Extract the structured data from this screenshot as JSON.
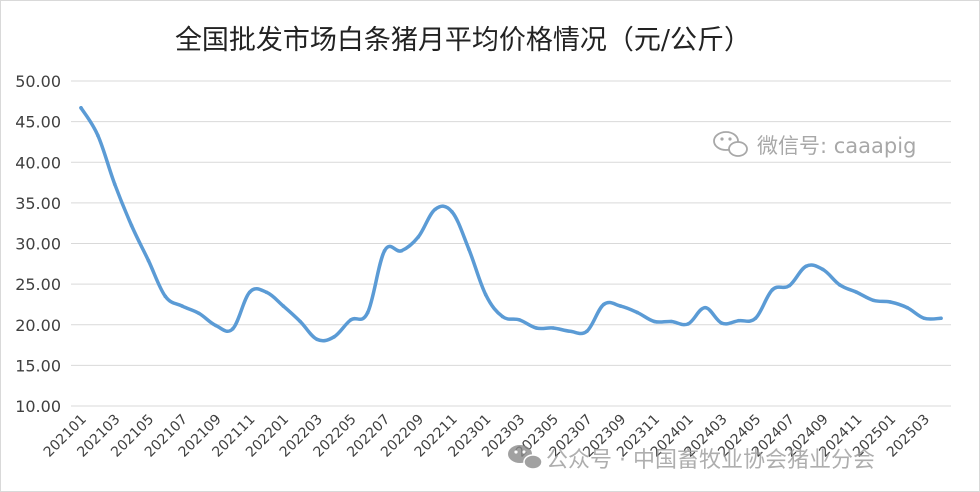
{
  "chart_data": {
    "type": "line",
    "title": "全国批发市场白条猪月平均价格情况（元/公斤）",
    "xlabel": "",
    "ylabel": "",
    "ylim": [
      10,
      50
    ],
    "y_ticks": [
      "10.00",
      "15.00",
      "20.00",
      "25.00",
      "30.00",
      "35.00",
      "40.00",
      "45.00",
      "50.00"
    ],
    "y_tick_values": [
      10,
      15,
      20,
      25,
      30,
      35,
      40,
      45,
      50
    ],
    "grid": true,
    "legend": "none",
    "line_color": "#5b9bd5",
    "x": [
      "202101",
      "202102",
      "202103",
      "202104",
      "202105",
      "202106",
      "202107",
      "202108",
      "202109",
      "202110",
      "202111",
      "202112",
      "202201",
      "202202",
      "202203",
      "202204",
      "202205",
      "202206",
      "202207",
      "202208",
      "202209",
      "202210",
      "202211",
      "202212",
      "202301",
      "202302",
      "202303",
      "202304",
      "202305",
      "202306",
      "202307",
      "202308",
      "202309",
      "202310",
      "202311",
      "202312",
      "202401",
      "202402",
      "202403",
      "202404",
      "202405",
      "202406",
      "202407",
      "202408",
      "202409",
      "202410",
      "202411",
      "202412",
      "202501",
      "202502",
      "202503",
      "202504"
    ],
    "x_tick_labels": [
      "202101",
      "202103",
      "202105",
      "202107",
      "202109",
      "202111",
      "202201",
      "202203",
      "202205",
      "202207",
      "202209",
      "202211",
      "202301",
      "202303",
      "202305",
      "202307",
      "202309",
      "202311",
      "202401",
      "202403",
      "202405",
      "202407",
      "202409",
      "202411",
      "202501",
      "202503"
    ],
    "values": [
      46.7,
      43.3,
      37.3,
      32.2,
      27.9,
      23.5,
      22.3,
      21.4,
      19.9,
      19.5,
      24.0,
      24.0,
      22.3,
      20.4,
      18.2,
      18.5,
      20.6,
      21.5,
      29.1,
      29.1,
      30.8,
      34.2,
      33.9,
      29.3,
      23.7,
      21.0,
      20.6,
      19.6,
      19.6,
      19.2,
      19.2,
      22.5,
      22.3,
      21.5,
      20.4,
      20.4,
      20.1,
      22.1,
      20.2,
      20.5,
      20.8,
      24.3,
      24.8,
      27.2,
      26.8,
      24.9,
      24.0,
      23.0,
      22.8,
      22.1,
      20.8,
      20.8
    ]
  },
  "watermark": {
    "top_icon": "wechat-icon",
    "top_text": "微信号: caaapig",
    "bottom_icon": "wechat-icon",
    "bottom_text": "公众号 · 中国畜牧业协会猪业分会"
  }
}
